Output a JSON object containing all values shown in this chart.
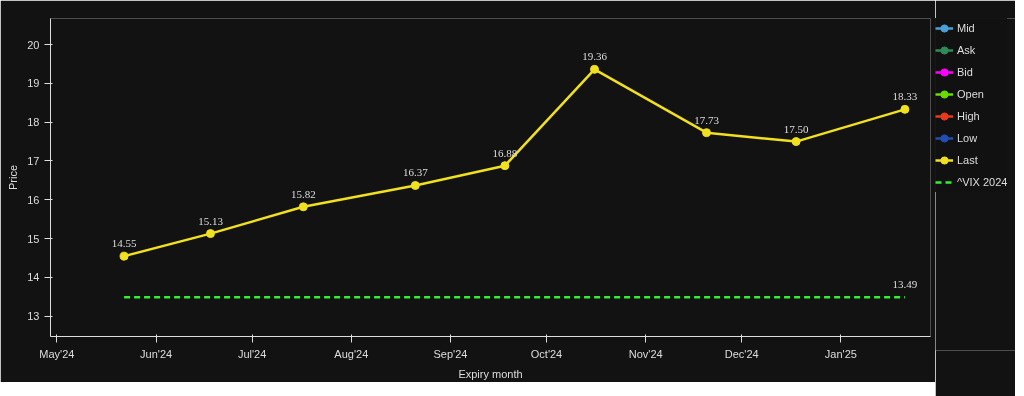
{
  "chart_data": {
    "type": "line",
    "xlabel": "Expiry month",
    "ylabel": "Price",
    "x": [
      "2024-05-22",
      "2024-06-18",
      "2024-07-17",
      "2024-08-21",
      "2024-09-18",
      "2024-10-16",
      "2024-11-20",
      "2024-12-18",
      "2025-01-21"
    ],
    "series": [
      {
        "name": "Mid",
        "color": "#4a9fd8",
        "values": [
          null,
          null,
          null,
          null,
          null,
          null,
          null,
          null,
          null
        ]
      },
      {
        "name": "Ask",
        "color": "#2e8b57",
        "values": [
          null,
          null,
          null,
          null,
          null,
          null,
          null,
          null,
          null
        ]
      },
      {
        "name": "Bid",
        "color": "#ff00ff",
        "values": [
          null,
          null,
          null,
          null,
          null,
          null,
          null,
          null,
          null
        ]
      },
      {
        "name": "Open",
        "color": "#66dd00",
        "values": [
          null,
          null,
          null,
          null,
          null,
          null,
          null,
          null,
          null
        ]
      },
      {
        "name": "High",
        "color": "#e83a1a",
        "values": [
          null,
          null,
          null,
          null,
          null,
          null,
          null,
          null,
          null
        ]
      },
      {
        "name": "Low",
        "color": "#1f4fb4",
        "values": [
          null,
          null,
          null,
          null,
          null,
          null,
          null,
          null,
          null
        ]
      },
      {
        "name": "Last",
        "color": "#f0e020",
        "values": [
          14.55,
          15.13,
          15.82,
          16.37,
          16.88,
          19.36,
          17.73,
          17.5,
          18.33
        ],
        "value_labels": [
          "14.55",
          "15.13",
          "15.82",
          "16.37",
          "16.88",
          "19.36",
          "17.73",
          "17.50",
          "18.33"
        ]
      },
      {
        "name": "^VIX 2024",
        "color": "#33ee33",
        "type": "line",
        "line_style": "dashed",
        "marker": "none",
        "x": [
          "2024-05-22",
          "2025-01-21"
        ],
        "values": [
          13.49,
          13.49
        ],
        "value_labels": [
          null,
          "13.49"
        ]
      }
    ],
    "marker": "circle",
    "line_style": "solid",
    "grid": false,
    "legend": "right",
    "xlim": [
      "2024-04-29",
      "2025-01-29"
    ],
    "xticks": [
      {
        "value": "2024-05-01",
        "label": "May'24"
      },
      {
        "value": "2024-06-01",
        "label": "Jun'24"
      },
      {
        "value": "2024-07-01",
        "label": "Jul'24"
      },
      {
        "value": "2024-08-01",
        "label": "Aug'24"
      },
      {
        "value": "2024-09-01",
        "label": "Sep'24"
      },
      {
        "value": "2024-10-01",
        "label": "Oct'24"
      },
      {
        "value": "2024-11-01",
        "label": "Nov'24"
      },
      {
        "value": "2024-12-01",
        "label": "Dec'24"
      },
      {
        "value": "2025-01-01",
        "label": "Jan'25"
      }
    ],
    "ylim": [
      12.48,
      20.67
    ],
    "yticks": [
      13,
      14,
      15,
      16,
      17,
      18,
      19,
      20
    ]
  }
}
